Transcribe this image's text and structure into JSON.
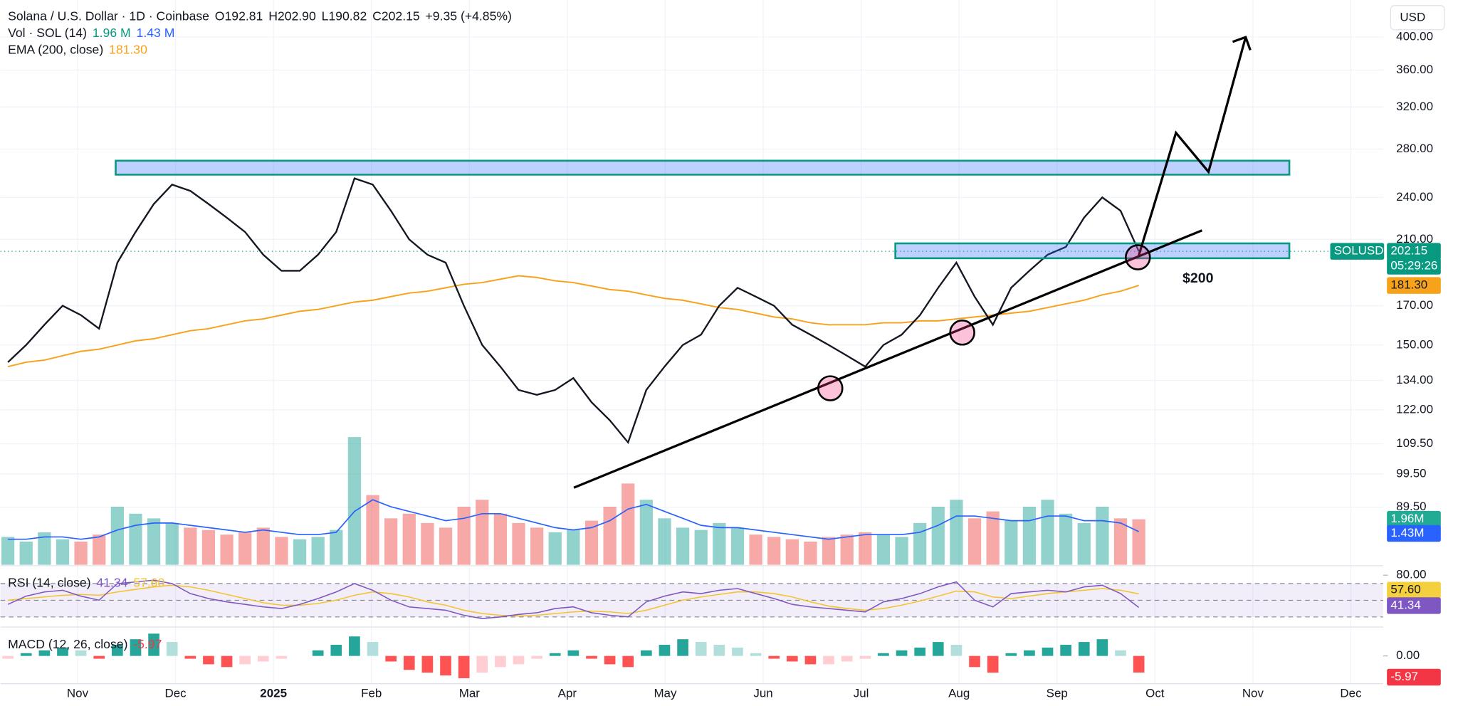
{
  "header": {
    "title": "Solana / U.S. Dollar · 1D · Coinbase",
    "open": "O192.81",
    "high": "H202.90",
    "low": "L190.82",
    "close": "C202.15",
    "change": "+9.35 (+4.85%)",
    "vol_name": "Vol · SOL (14)",
    "vol_value": "1.96 M",
    "vol_ma": "1.43 M",
    "ema_name": "EMA (200, close)",
    "ema_value": "181.30",
    "rsi_name": "RSI (14, close)",
    "rsi_value": "41.34",
    "rsi_ma": "57.60",
    "macd_name": "MACD (12, 26, close)",
    "macd_value": "-5.97"
  },
  "currency": "USD",
  "annotation": "$200",
  "badges": {
    "symbol": "SOLUSD",
    "price": "202.15",
    "countdown": "05:29:26",
    "ema": "181.30",
    "vol": "1.96M",
    "vol_ma": "1.43M",
    "rsi_ma": "57.60",
    "rsi": "41.34",
    "macd": "-5.97"
  },
  "chart_data": [
    {
      "type": "line",
      "log": true,
      "grid": true,
      "ylim": [
        74.5,
        450
      ],
      "yticks": [
        {
          "value": 400,
          "label": "400.00"
        },
        {
          "value": 360,
          "label": "360.00"
        },
        {
          "value": 320,
          "label": "320.00"
        },
        {
          "value": 280,
          "label": "280.00"
        },
        {
          "value": 240,
          "label": "240.00"
        },
        {
          "value": 210,
          "label": "210.00"
        },
        {
          "value": 170,
          "label": "170.00"
        },
        {
          "value": 150,
          "label": "150.00"
        },
        {
          "value": 134,
          "label": "134.00"
        },
        {
          "value": 122,
          "label": "122.00"
        },
        {
          "value": 109.5,
          "label": "109.50"
        },
        {
          "value": 99.5,
          "label": "99.50"
        },
        {
          "value": 89.5,
          "label": "89.50"
        }
      ],
      "xticks": [
        "Nov",
        "Dec",
        "2025",
        "Feb",
        "Mar",
        "Apr",
        "May",
        "Jun",
        "Jul",
        "Aug",
        "Sep",
        "Oct",
        "Nov",
        "Dec"
      ],
      "series": [
        {
          "name": "SOLUSD",
          "color": "#131722",
          "values": [
            142,
            150,
            160,
            170,
            165,
            158,
            195,
            215,
            235,
            250,
            245,
            235,
            225,
            215,
            200,
            190,
            190,
            200,
            215,
            255,
            250,
            230,
            210,
            200,
            195,
            170,
            150,
            140,
            130,
            128,
            130,
            135,
            125,
            118,
            110,
            130,
            140,
            150,
            155,
            170,
            180,
            175,
            170,
            160,
            155,
            150,
            145,
            140,
            150,
            155,
            165,
            180,
            195,
            175,
            160,
            180,
            190,
            200,
            205,
            225,
            240,
            230,
            202.15
          ]
        },
        {
          "name": "EMA (200, close)",
          "color": "#f7a21b",
          "values": [
            140,
            142,
            143,
            145,
            147,
            148,
            150,
            152,
            153,
            155,
            157,
            158,
            160,
            162,
            163,
            165,
            167,
            168,
            170,
            172,
            173,
            175,
            177,
            178,
            180,
            182,
            183,
            185,
            187,
            186,
            184,
            183,
            181,
            179,
            178,
            176,
            174,
            173,
            171,
            169,
            168,
            166,
            164,
            163,
            161,
            160,
            160,
            160,
            161,
            161,
            162,
            162,
            163,
            164,
            165,
            166,
            167,
            169,
            171,
            173,
            176,
            178,
            181.3
          ]
        }
      ]
    },
    {
      "type": "bar",
      "ylim": [
        0,
        6
      ],
      "series": [
        {
          "name": "Vol · SOL (14)",
          "color": "#26a69a",
          "values": [
            1.2,
            1.0,
            1.4,
            1.1,
            1.0,
            1.3,
            2.5,
            2.2,
            2.0,
            1.8,
            1.6,
            1.5,
            1.3,
            1.4,
            1.6,
            1.2,
            1.1,
            1.2,
            1.5,
            5.5,
            3.0,
            2.0,
            2.2,
            1.8,
            1.6,
            2.5,
            2.8,
            2.2,
            1.8,
            1.6,
            1.4,
            1.5,
            1.9,
            2.5,
            3.5,
            2.8,
            2.0,
            1.6,
            1.5,
            1.8,
            1.6,
            1.3,
            1.2,
            1.1,
            1.0,
            1.2,
            1.3,
            1.4,
            1.3,
            1.2,
            1.8,
            2.5,
            2.8,
            2.0,
            2.3,
            1.9,
            2.5,
            2.8,
            2.2,
            1.8,
            2.5,
            2.0,
            1.96
          ]
        },
        {
          "name": "MA",
          "color": "#2962ff",
          "values": [
            1.1,
            1.1,
            1.2,
            1.2,
            1.1,
            1.2,
            1.5,
            1.7,
            1.8,
            1.8,
            1.7,
            1.6,
            1.5,
            1.4,
            1.5,
            1.4,
            1.3,
            1.3,
            1.4,
            2.3,
            2.8,
            2.5,
            2.3,
            2.1,
            1.9,
            2.0,
            2.2,
            2.2,
            2.0,
            1.8,
            1.6,
            1.5,
            1.6,
            1.9,
            2.4,
            2.6,
            2.3,
            2.0,
            1.7,
            1.6,
            1.6,
            1.5,
            1.4,
            1.3,
            1.2,
            1.1,
            1.2,
            1.3,
            1.3,
            1.3,
            1.4,
            1.7,
            2.1,
            2.1,
            2.0,
            1.9,
            1.9,
            2.1,
            2.1,
            1.9,
            1.9,
            1.8,
            1.43
          ]
        }
      ]
    },
    {
      "type": "line",
      "ylim": [
        19,
        88
      ],
      "yticks": [
        {
          "value": 80,
          "label": "80.00"
        }
      ],
      "bands": [
        30,
        50,
        70
      ],
      "series": [
        {
          "name": "RSI",
          "color": "#7e57c2",
          "values": [
            45,
            55,
            60,
            62,
            55,
            50,
            70,
            72,
            74,
            70,
            58,
            52,
            48,
            45,
            42,
            40,
            45,
            52,
            60,
            70,
            62,
            50,
            42,
            40,
            38,
            32,
            28,
            30,
            33,
            35,
            40,
            42,
            35,
            32,
            30,
            48,
            55,
            60,
            58,
            62,
            64,
            58,
            52,
            45,
            42,
            40,
            38,
            36,
            48,
            52,
            58,
            66,
            72,
            50,
            42,
            58,
            60,
            62,
            60,
            66,
            68,
            58,
            41.34
          ]
        },
        {
          "name": "RSI MA",
          "color": "#f4c430",
          "values": [
            50,
            52,
            54,
            56,
            57,
            56,
            60,
            63,
            66,
            68,
            66,
            62,
            57,
            52,
            47,
            44,
            44,
            46,
            50,
            56,
            60,
            58,
            54,
            48,
            44,
            38,
            34,
            32,
            31,
            32,
            34,
            36,
            37,
            36,
            34,
            38,
            44,
            50,
            54,
            57,
            60,
            60,
            58,
            54,
            48,
            43,
            40,
            38,
            40,
            44,
            49,
            55,
            61,
            60,
            54,
            52,
            55,
            58,
            60,
            62,
            64,
            62,
            57.6
          ]
        }
      ]
    },
    {
      "type": "bar",
      "ylim": [
        -11.3,
        8.7
      ],
      "yticks": [
        {
          "value": 0,
          "label": "0.00"
        }
      ],
      "series": [
        {
          "name": "MACD",
          "color": "#26a69a",
          "values": [
            -1,
            1,
            2,
            3,
            2,
            -1,
            4,
            6,
            8,
            5,
            -1,
            -3,
            -4,
            -3,
            -2,
            -1,
            0,
            2,
            4,
            7,
            5,
            -2,
            -5,
            -6,
            -7,
            -8,
            -6,
            -4,
            -3,
            -1,
            1,
            2,
            -1,
            -3,
            -4,
            2,
            4,
            6,
            5,
            4,
            3,
            1,
            -1,
            -2,
            -3,
            -3,
            -2,
            -1,
            1,
            2,
            3,
            5,
            4,
            -4,
            -6,
            1,
            2,
            3,
            4,
            5,
            6,
            2,
            -5.97
          ]
        }
      ]
    }
  ]
}
